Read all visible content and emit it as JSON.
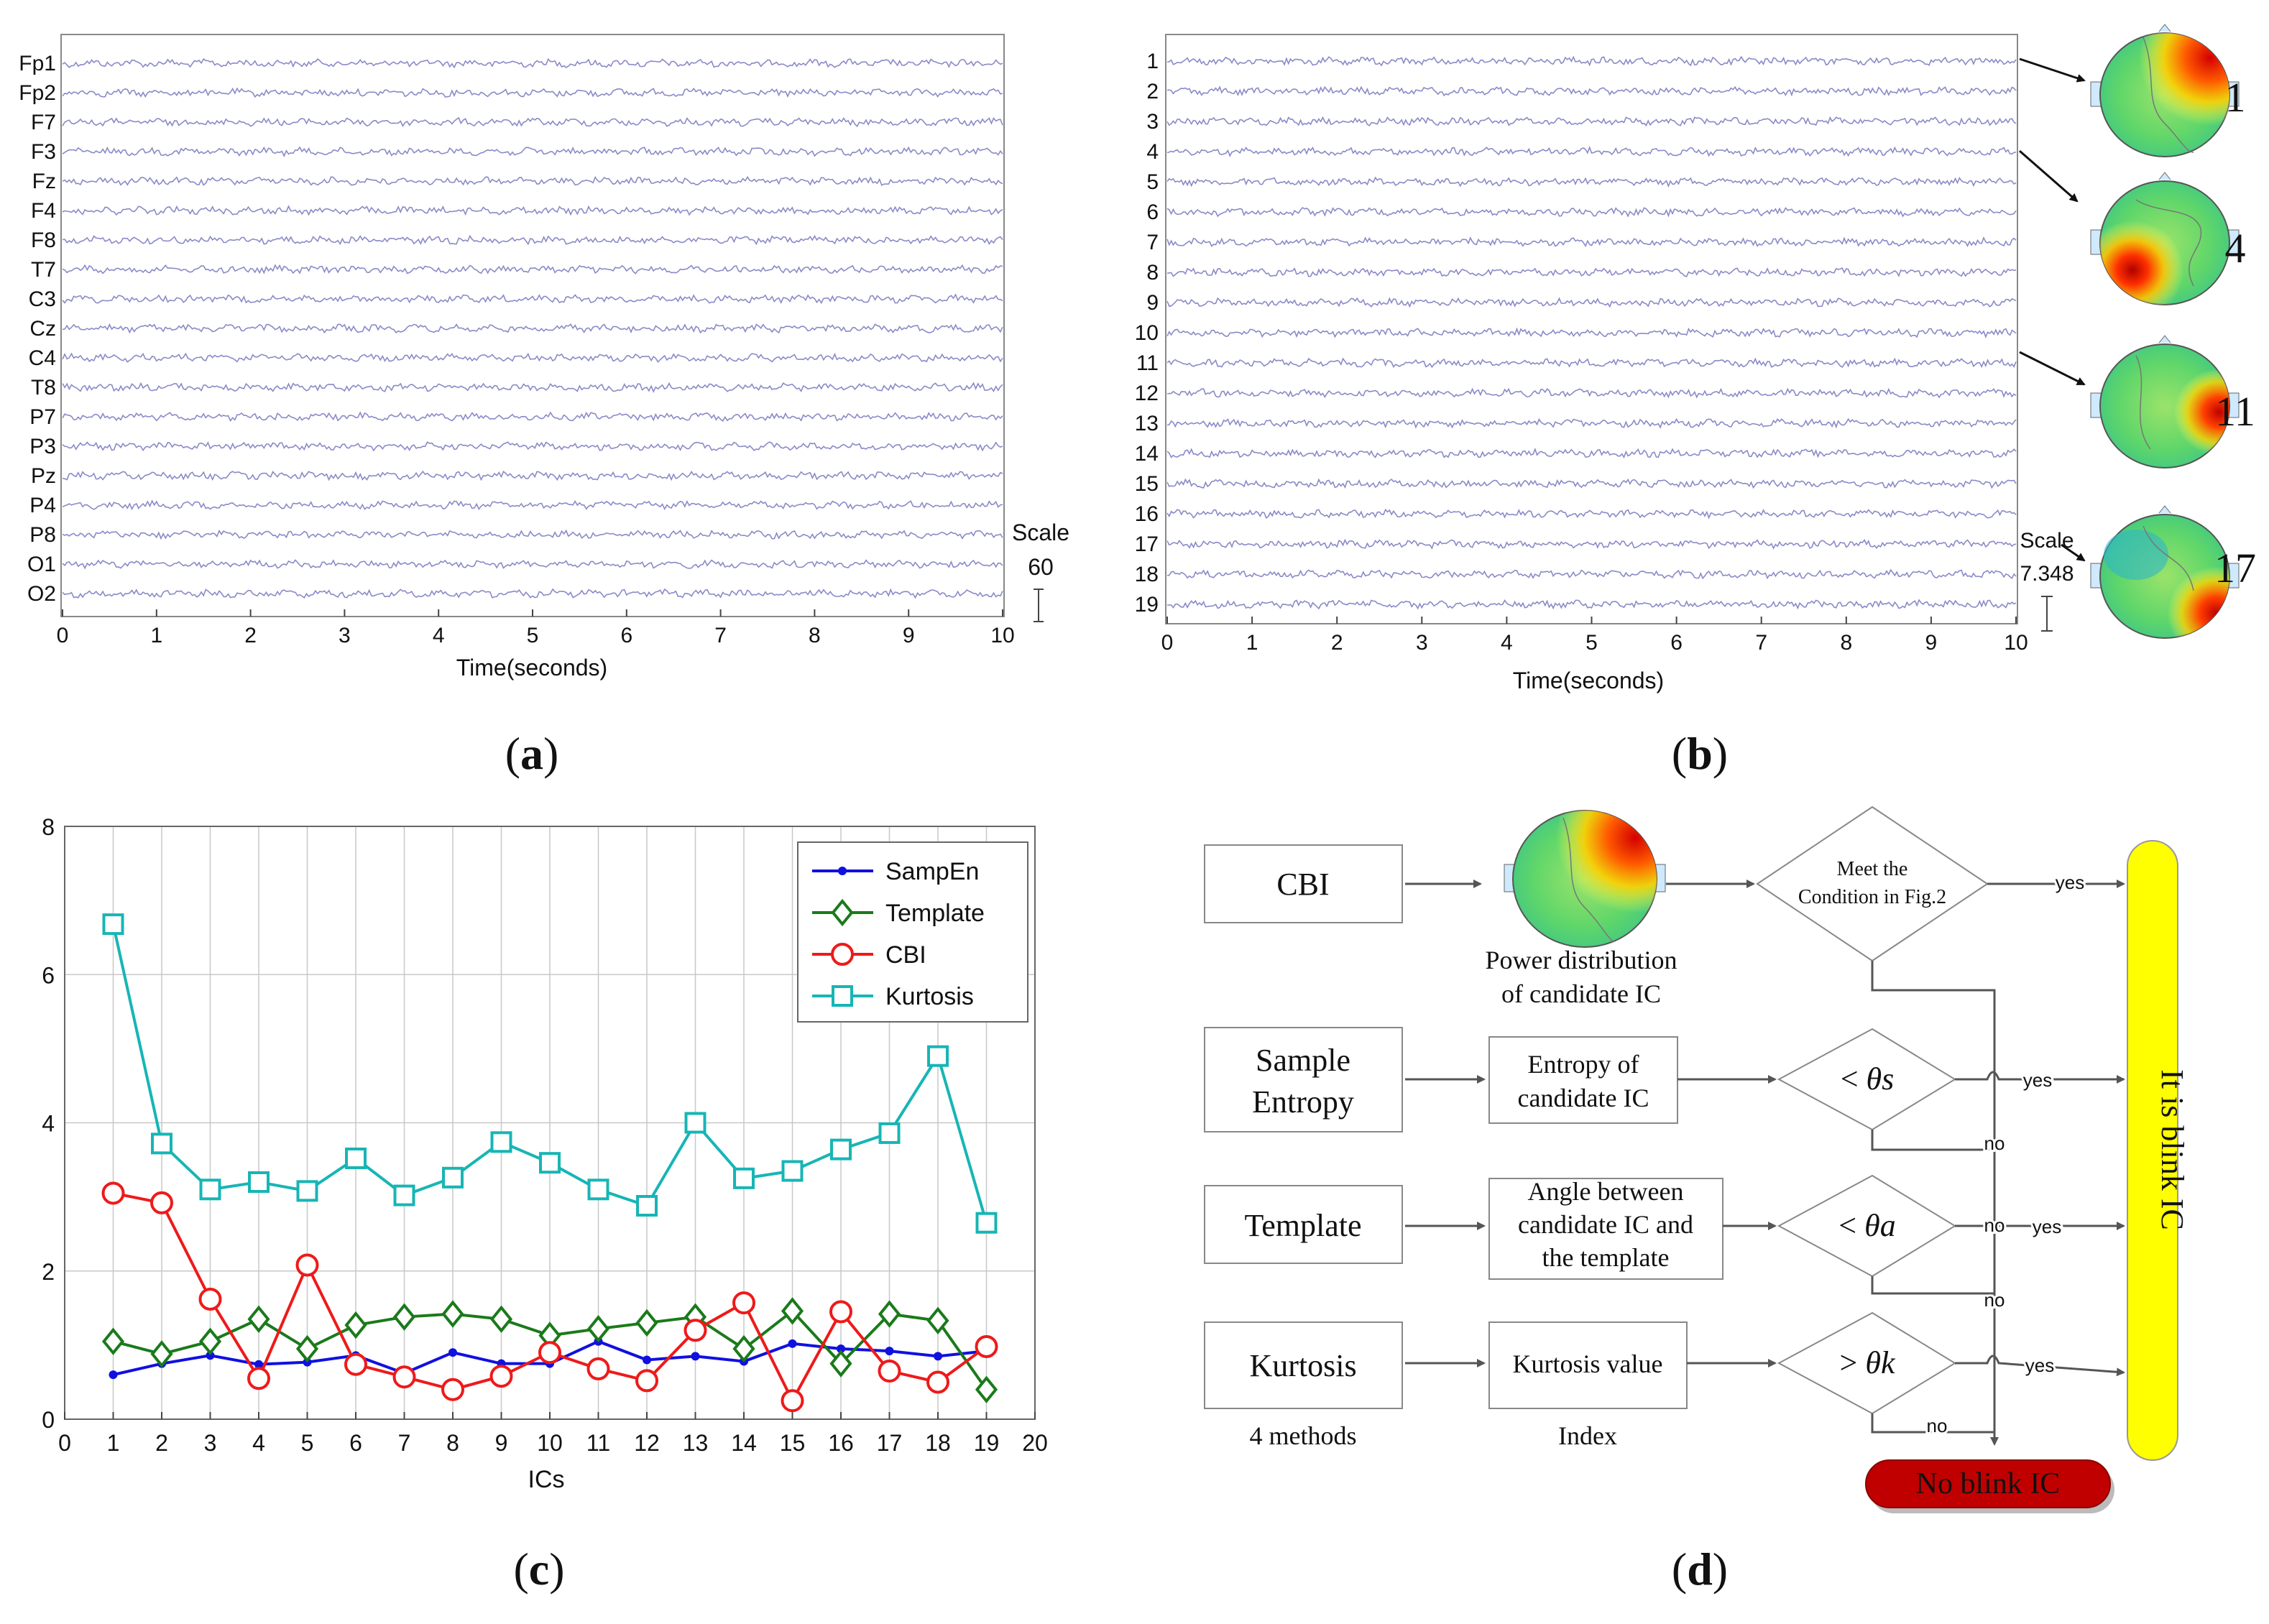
{
  "panel_a": {
    "label": "(a)",
    "label_letter": "a",
    "channels": [
      "Fp1",
      "Fp2",
      "F7",
      "F3",
      "Fz",
      "F4",
      "F8",
      "T7",
      "C3",
      "Cz",
      "C4",
      "T8",
      "P7",
      "P3",
      "Pz",
      "P4",
      "P8",
      "O1",
      "O2"
    ],
    "x_ticks": [
      "0",
      "1",
      "2",
      "3",
      "4",
      "5",
      "6",
      "7",
      "8",
      "9",
      "10"
    ],
    "xlabel": "Time(seconds)",
    "scale_label": "Scale",
    "scale_value": "60",
    "trace_color": "#8a8ac8"
  },
  "panel_b": {
    "label": "(b)",
    "label_letter": "b",
    "channels": [
      "1",
      "2",
      "3",
      "4",
      "5",
      "6",
      "7",
      "8",
      "9",
      "10",
      "11",
      "12",
      "13",
      "14",
      "15",
      "16",
      "17",
      "18",
      "19"
    ],
    "x_ticks": [
      "0",
      "1",
      "2",
      "3",
      "4",
      "5",
      "6",
      "7",
      "8",
      "9",
      "10"
    ],
    "xlabel": "Time(seconds)",
    "scale_label": "Scale",
    "scale_value": "7.348",
    "topomap_labels": [
      "1",
      "4",
      "11",
      "17"
    ],
    "trace_color": "#8a8ac8"
  },
  "chart_data": {
    "type": "line",
    "label": "(c)",
    "label_letter": "c",
    "categories": [
      1,
      2,
      3,
      4,
      5,
      6,
      7,
      8,
      9,
      10,
      11,
      12,
      13,
      14,
      15,
      16,
      17,
      18,
      19
    ],
    "x_ticks": [
      "0",
      "1",
      "2",
      "3",
      "4",
      "5",
      "6",
      "7",
      "8",
      "9",
      "10",
      "11",
      "12",
      "13",
      "14",
      "15",
      "16",
      "17",
      "18",
      "19",
      "20"
    ],
    "y_ticks": [
      "0",
      "2",
      "4",
      "6",
      "8"
    ],
    "xlim": [
      0,
      20
    ],
    "ylim": [
      0,
      8
    ],
    "xlabel": "ICs",
    "ylabel": "",
    "grid": true,
    "legend_position": "top-right",
    "series": [
      {
        "name": "SampEn",
        "color": "#1010e0",
        "marker": "dot",
        "values": [
          0.6,
          0.75,
          0.86,
          0.74,
          0.77,
          0.86,
          0.62,
          0.9,
          0.75,
          0.75,
          1.05,
          0.8,
          0.85,
          0.78,
          1.02,
          0.95,
          0.92,
          0.85,
          0.92
        ]
      },
      {
        "name": "Template",
        "color": "#1a7a1a",
        "marker": "diamond",
        "values": [
          1.05,
          0.88,
          1.05,
          1.35,
          0.95,
          1.27,
          1.38,
          1.42,
          1.35,
          1.13,
          1.22,
          1.3,
          1.38,
          0.95,
          1.46,
          0.75,
          1.42,
          1.33,
          0.4
        ]
      },
      {
        "name": "CBI",
        "color": "#ee1a1a",
        "marker": "circle",
        "values": [
          3.05,
          2.92,
          1.62,
          0.55,
          2.08,
          0.74,
          0.57,
          0.4,
          0.58,
          0.9,
          0.68,
          0.52,
          1.2,
          1.57,
          0.25,
          1.45,
          0.65,
          0.5,
          0.98
        ]
      },
      {
        "name": "Kurtosis",
        "color": "#17b5b5",
        "marker": "square",
        "values": [
          6.68,
          3.72,
          3.1,
          3.2,
          3.08,
          3.52,
          3.02,
          3.26,
          3.74,
          3.46,
          3.1,
          2.88,
          4.0,
          3.25,
          3.35,
          3.64,
          3.86,
          4.9,
          2.65
        ]
      }
    ]
  },
  "panel_d": {
    "label": "(d)",
    "label_letter": "d",
    "methods": [
      "CBI",
      "Sample",
      "Entropy",
      "Template",
      "Kurtosis"
    ],
    "methods_caption": "4 methods",
    "index_caption": "Index",
    "power_caption_1": "Power distribution",
    "power_caption_2": "of candidate IC",
    "entropy_box_1": "Entropy of",
    "entropy_box_2": "candidate IC",
    "angle_box_1": "Angle between",
    "angle_box_2": "candidate IC and",
    "angle_box_3": "the template",
    "kurtosis_box": "Kurtosis value",
    "condition_1": "Meet the",
    "condition_2": "Condition in Fig.2",
    "theta_s_op": "<",
    "theta_s": "θs",
    "theta_a_op": "<",
    "theta_a": "θa",
    "theta_k_op": ">",
    "theta_k": "θk",
    "yes": "yes",
    "no": "no",
    "blink_ic": "It is blink IC",
    "no_blink_ic": "No blink IC",
    "blink_color": "#ffff00",
    "no_blink_color": "#c00000"
  }
}
